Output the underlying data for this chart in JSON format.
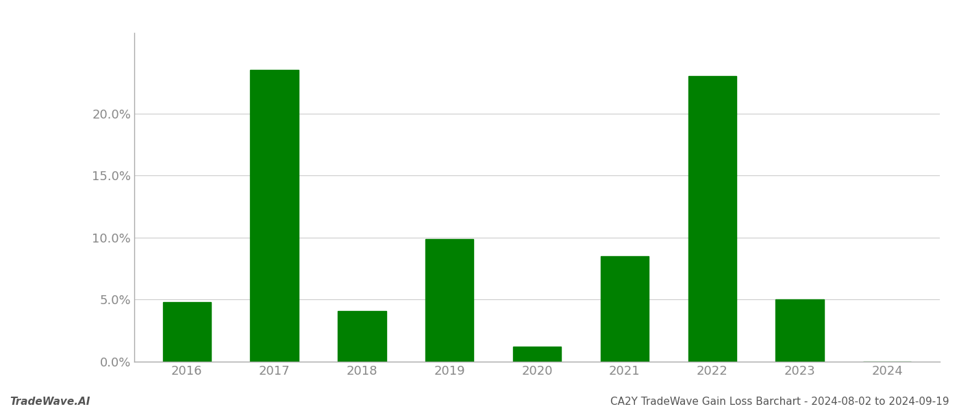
{
  "categories": [
    "2016",
    "2017",
    "2018",
    "2019",
    "2020",
    "2021",
    "2022",
    "2023",
    "2024"
  ],
  "values": [
    0.048,
    0.235,
    0.041,
    0.099,
    0.012,
    0.085,
    0.23,
    0.05,
    0.0
  ],
  "bar_color": "#008000",
  "ylabel_ticks": [
    0.0,
    0.05,
    0.1,
    0.15,
    0.2
  ],
  "ylim": [
    0,
    0.265
  ],
  "background_color": "#ffffff",
  "footer_left": "TradeWave.AI",
  "footer_right": "CA2Y TradeWave Gain Loss Barchart - 2024-08-02 to 2024-09-19",
  "footer_fontsize": 11,
  "tick_fontsize": 13,
  "grid_color": "#cccccc",
  "bar_width": 0.55,
  "spine_color": "#aaaaaa",
  "tick_color": "#888888"
}
